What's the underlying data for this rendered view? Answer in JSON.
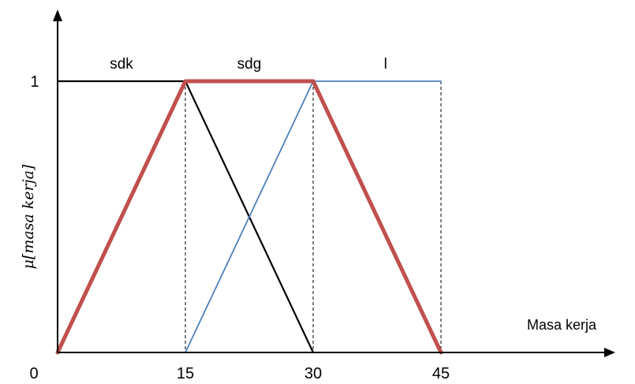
{
  "chart_data": {
    "type": "line",
    "xlabel": "Masa kerja",
    "ylabel": "μ[masa kerja]",
    "xlim": [
      0,
      52
    ],
    "ylim": [
      0,
      1.25
    ],
    "x_ticks": [
      {
        "value": 0,
        "label": "0"
      },
      {
        "value": 15,
        "label": "15"
      },
      {
        "value": 30,
        "label": "30"
      },
      {
        "value": 45,
        "label": "45"
      }
    ],
    "y_ticks": [
      {
        "value": 1,
        "label": "1"
      }
    ],
    "set_labels": [
      {
        "text": "sdk",
        "x": 7.5
      },
      {
        "text": "sdg",
        "x": 22.5
      },
      {
        "text": "l",
        "x": 38.5
      }
    ],
    "series": [
      {
        "color": "#000000",
        "width": 2.2,
        "points": [
          [
            0,
            1
          ],
          [
            15,
            1
          ],
          [
            30,
            0
          ]
        ]
      },
      {
        "color": "#4f81bd",
        "width": 1.8,
        "points": [
          [
            15,
            0
          ],
          [
            30,
            1
          ],
          [
            45,
            1
          ]
        ]
      },
      {
        "color": "#c0504d",
        "width": 5,
        "points": [
          [
            0,
            0
          ],
          [
            15,
            1
          ],
          [
            30,
            1
          ],
          [
            45,
            0
          ]
        ]
      }
    ],
    "dashed_guides": [
      15,
      30,
      45
    ]
  }
}
